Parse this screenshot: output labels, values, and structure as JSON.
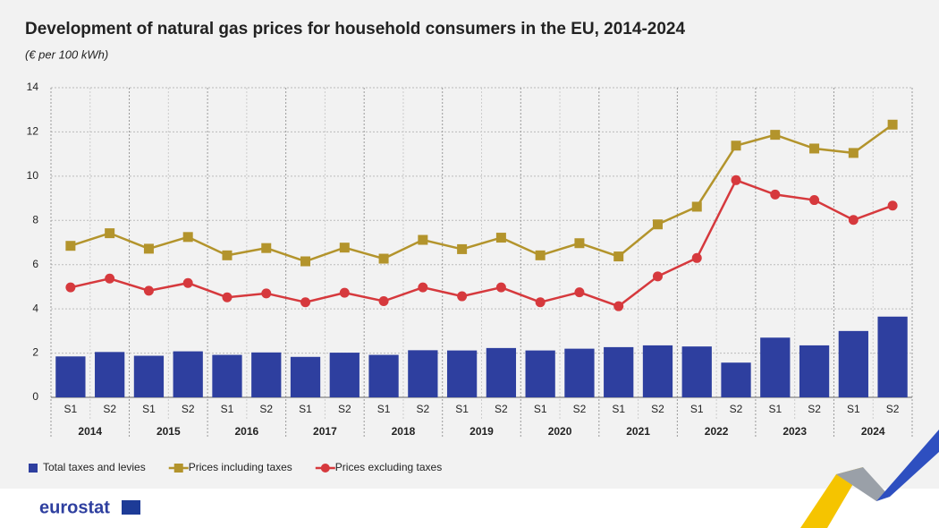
{
  "chart_data": {
    "type": "combo",
    "title": "Development of natural gas prices for household consumers in the EU, 2014-2024",
    "subtitle": "(€ per 100 kWh)",
    "categories": [
      "S1",
      "S2",
      "S1",
      "S2",
      "S1",
      "S2",
      "S1",
      "S2",
      "S1",
      "S2",
      "S1",
      "S2",
      "S1",
      "S2",
      "S1",
      "S2",
      "S1",
      "S2",
      "S1",
      "S2",
      "S1",
      "S2"
    ],
    "category_groups": [
      "2014",
      "2015",
      "2016",
      "2017",
      "2018",
      "2019",
      "2020",
      "2021",
      "2022",
      "2023",
      "2024"
    ],
    "ylim": [
      0,
      14
    ],
    "yticks": [
      0,
      2,
      4,
      6,
      8,
      10,
      12,
      14
    ],
    "grid": true,
    "legend": "bottom-left",
    "series": [
      {
        "name": "Total taxes and levies",
        "type": "bar",
        "color": "#2e3f9f",
        "values": [
          1.85,
          2.05,
          1.88,
          2.08,
          1.92,
          2.03,
          1.83,
          2.02,
          1.92,
          2.13,
          2.12,
          2.23,
          2.12,
          2.2,
          2.27,
          2.35,
          2.3,
          1.57,
          2.7,
          2.35,
          3.0,
          3.65
        ]
      },
      {
        "name": "Prices including taxes",
        "type": "line",
        "marker": "square",
        "color": "#b3942c",
        "values": [
          6.85,
          7.42,
          6.72,
          7.25,
          6.42,
          6.75,
          6.15,
          6.77,
          6.27,
          7.12,
          6.7,
          7.22,
          6.42,
          6.97,
          6.37,
          7.82,
          8.62,
          11.38,
          11.87,
          11.25,
          11.05,
          12.33
        ]
      },
      {
        "name": "Prices excluding taxes",
        "type": "line",
        "marker": "circle",
        "color": "#d6393d",
        "values": [
          4.97,
          5.37,
          4.82,
          5.17,
          4.52,
          4.7,
          4.3,
          4.73,
          4.35,
          4.97,
          4.57,
          4.97,
          4.3,
          4.75,
          4.12,
          5.47,
          6.3,
          9.82,
          9.17,
          8.92,
          8.02,
          8.67
        ]
      }
    ]
  },
  "logo_text": "eurostat"
}
